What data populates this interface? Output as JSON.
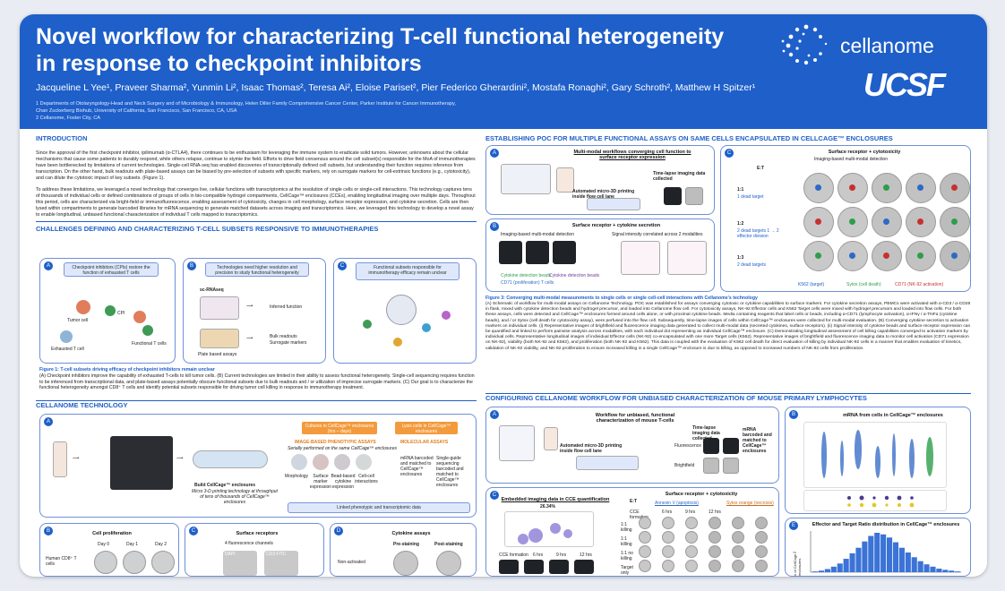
{
  "header": {
    "title_line1": "Novel workflow for characterizing T-cell functional heterogeneity",
    "title_line2": "in response to checkpoint inhibitors",
    "authors": "Jacqueline L Yee¹, Praveer Sharma², Yunmin Li², Isaac Thomas², Teresa Ai², Eloise Pariset², Pier Federico Gherardini², Mostafa Ronaghi², Gary Schroth², Matthew H Spitzer¹",
    "affil1": "1 Departments of Otolaryngology-Head and Neck Surgery and of Microbiology & Immunology, Helen Diller Family Comprehensive Cancer Center, Parker Institute for Cancer Immunotherapy,",
    "affil2": "Chan Zuckerberg Biohub, University of California, San Francisco, San Francisco, CA, USA",
    "affil3": "2 Cellanome, Foster City, CA",
    "logo_word": "cellanome",
    "logo_ucsf": "UCSF"
  },
  "intro": {
    "title": "INTRODUCTION",
    "p1": "Since the approval of the first checkpoint inhibitor, ipilimumab (α-CTLA4), there continues to be enthusiasm for leveraging the immune system to eradicate solid tumors. However, unknowns about the cellular mechanisms that cause some patients to durably respond, while others relapse, continue to stymie the field. Efforts to drive field consensus around the cell subset(s) responsible for the MoA of immunotherapies have been bottlenecked by limitations of current technologies. Single-cell RNA-seq has enabled discoveries of transcriptionally defined cell subsets, but understanding their function requires inference from transcription. On the other hand, bulk readouts with plate-based assays can be biased by pre-selection of subsets with specific markers, rely on surrogate markers for cell-extrinsic functions (e.g., cytotoxicity), and can dilute the cytotoxic impact of key subsets. (Figure 1).",
    "p2": "To address these limitations, we leveraged a novel technology that converges live, cellular functions with transcriptomics at the resolution of single cells or single-cell interactions. This technology captures tens of thousands of individual cells or defined combinations of groups of cells in bio-compatible hydrogel compartments, CellCage™ enclosures (CCEs), enabling longitudinal imaging over multiple days. Throughout this period, cells are characterized via bright-field or immunofluorescence, enabling assessment of cytotoxicity, changes in cell morphology, surface receptor expression, and cytokine secretion. Cells are then lysed within compartments to generate barcoded libraries for mRNA sequencing to generate matched datasets across imaging and transcriptomics. Here, we leveraged this technology to develop a novel assay to enable longitudinal, unbiased functional characterization of individual T cells mapped to transcriptomics."
  },
  "challenges": {
    "title": "CHALLENGES DEFINING AND CHARACTERIZING T-CELL SUBSETS RESPONSIVE TO IMMUNOTHERAPIES",
    "a_box": "Checkpoint inhibitors (CPIs) restore the function of exhausted T cells",
    "b_box": "Technologies need higher resolution and precision to study functional heterogeneity",
    "c_box": "Functional subsets responsible for immunotherapy efficacy remain unclear",
    "tumor": "Tumor cell",
    "cpi": "CPI",
    "exhausted": "Exhausted T cell",
    "functional": "Functional T cells",
    "scrna": "sc-RNAseq",
    "inferred": "Inferred function",
    "plate": "Plate based assays",
    "bulk1": "Bulk readouts",
    "bulk2": "Surrogate markers",
    "fig_title": "Figure 1: T-cell subsets driving efficacy of checkpoint inhibitors remain unclear",
    "fig_caption": "(A) Checkpoint inhibitors improve the capability of exhausted T-cells to kill tumor cells. (B) Current technologies are limited in their ability to assess functional heterogeneity. Single-cell sequencing requires function to be inferenced from transcriptional data, and plate-based assays potentially obscure functional subsets due to bulk readouts and / or utilization of imprecise surrogate markers. (C) Our goal is to characterize the functional heterogeneity amongst CD8⁺ T cells and identify potential subsets responsible for driving tumor cell killing in response to immunotherapy treatment."
  },
  "tech": {
    "title": "CELLANOME TECHNOLOGY",
    "build_title": "Build CellCage™ enclosures",
    "build_sub": "Micro 3-D printing technology at throughput of tens of thousands of CellCage™ enclosures",
    "culture": "Cultures in CellCage™ enclosures (hrs – days)",
    "lysis": "Lysis cells in CellCage™ enclosures",
    "image_assays": "IMAGE-BASED PHENOTYPIC ASSAYS",
    "image_sub": "Serially performed on the same CellCage™ enclosures",
    "molecular": "MOLECULAR ASSAYS",
    "m1": "Morphology",
    "m2": "Surface marker expression",
    "m3": "Bead-based cytokine expression",
    "m4": "Cell-cell interactions",
    "m5": "mRNA barcoded and matched to CellCage™ enclosures",
    "m6": "Single-guide sequencing barcoded and matched to CellCage™ enclosures",
    "linked": "Linked phenotypic and transcriptomic data",
    "prolif": "Cell proliferation",
    "d0": "Day 0",
    "d1": "Day 1",
    "d2": "Day 2",
    "human": "Human CD8⁺ T cells",
    "surface": "Surface receptors",
    "fluor": "4 fluorescence channels",
    "dapi": "DAPI",
    "cd3": "CD3 FITC",
    "cytokine": "Cytokine assays",
    "pre": "Pre-staining",
    "post": "Post-staining",
    "nonact": "Non-activated"
  },
  "poc": {
    "title": "ESTABLISHING POC FOR MULTIPLE FUNCTIONAL ASSAYS ON SAME CELLS ENCAPSULATED IN CELLCAGE™ ENCLOSURES",
    "a_title": "Multi-modal workflows converging cell function to surface receptor expression",
    "a_flow": "Automated micro-3D printing inside flow cell lane",
    "a_timelapse": "Time-lapse imaging data collected",
    "b_title": "Surface receptor + cytokine secretion",
    "b_i": "Imaging-based multi-modal detection",
    "b_ii": "Signal intensity correlated across 2 modalities",
    "b_leg1": "Cytokine detection beads",
    "b_leg2": "Cytokine detection beads",
    "b_leg3": "CD71 (proliferation) T cells",
    "c_title": "Surface receptor + cytotoxicity",
    "c_sub": "Imaging-based multi-modal detection",
    "c_et": "E:T",
    "c_r1": "1:1",
    "c_r1s": "1 dead target",
    "c_r2": "1:2",
    "c_r2s": "2 dead targets 1 → 2 effector division",
    "c_r3": "1:3",
    "c_r3s": "2 dead targets",
    "leg1": "K562 (target)",
    "leg2": "Sytox (cell death)",
    "leg3": "CD71 (NK-92 activation)",
    "fig_title": "Figure 3: Converging multi-modal measurements to single cells or single cell-cell interactions with Cellanome's technology",
    "fig_caption": "(A) Schematic of workflow for multi-modal assays on Cellanome Technology. POC was established for assays converging cytotoxic or cytokine capabilities to surface markers. For cytokine secretion assays, PBMCs were activated with α-CD3 / α-CD28 in flask, mixed with cytokine detection beads and hydrogel precursor, and loaded into Cellanome flow cell. For cytotoxicity assays, NK-92 Effector cells and K562 Target cells were mixed with hydrogel precursors and loaded into flow cells. For both these assays, cells were detected and CellCage™ enclosures formed around cells alone, or with proximal cytokine beads. Media containing reagents that label cells or beads, including α-CD71 (lymphocyte activation), α-IFNγ / α-TNFα (cytokine beads), and / or Sytox (cell death for cytotoxicity assay), were perfused into the flow cell. Subsequently, time-lapse images of cells within CellCage™ enclosures were collected for multi-modal evaluation. (B) Converging cytokine secretion to activation markers on individual cells. (i) Representative images of brightfield and fluorescence imaging data generated to collect multi-modal data (secreted cytokines, surface receptors). (ii) Signal intensity of cytokine beads and surface receptor expression can be quantified and linked to perform pairwise analysis across modalities, with each individual dot representing an individual CellCage™ enclosure. (C) Demonstrating longitudinal assessment of cell killing capabilities converged to activation markers by individual cells. Representative longitudinal images of individual Effector cells (NK-92) co-encapsulated with one more Target cells (K562). Representative images of brightfield and fluorescence imaging data to monitor cell activation (CD71 expression on NK-92), viability (both NK-92 and K562), and proliferation (both NK-92 and K562). This data is coupled with the evaluation of K562 cell death for direct evaluation of killing by individual NK-92 cells in a manner that enables evaluation of kinetics, validation of NK-92 viability, and NK-92 proliferation to ensure increased killing in a single CellCage™ enclosure is due to killing, as opposed to increased numbers of NK-92 cells from proliferation."
  },
  "config": {
    "title": "CONFIGURING CELLANOME WORKFLOW FOR UNBIASED CHARACTERIZATION OF MOUSE PRIMARY LYMPHOCYTES",
    "a_title": "Workflow for unbiased, functional characterization of mouse T-cells",
    "a_flow": "Automated micro-3D printing inside flow cell lane",
    "a_time": "Time-lapse imaging data collected",
    "a_mrna": "mRNA barcoded and matched to CellCage™ enclosures",
    "a_fluor": "Fluorescence",
    "a_bf": "Brightfield",
    "b_title": "mRNA from cells in CellCage™ enclosures",
    "c_left": "Embedded imaging data in CCE quantification",
    "c_pct": "26.34%",
    "c_title": "Surface receptor + cytotoxicity",
    "c_annex": "Annexin V (apoptosis)",
    "c_sytox": "Sytox orange (necrosis)",
    "c_formation": "CCE formation",
    "c_6": "6 hrs",
    "c_9": "9 hrs",
    "c_12": "12 hrs",
    "c_r1": "1:1 killing",
    "c_r2": "1:1 killing",
    "c_r3": "1:1 no killing",
    "c_r4": "Target only",
    "d_title": "Effector and Target Ratio distribution in CellCage™ enclosures",
    "d_ylabel": "# of CellCage™ enclosures"
  },
  "chart_data": {
    "type": "bar",
    "title": "Effector and Target Ratio distribution in CellCage™ enclosures",
    "ylabel": "# of CellCage™ enclosures",
    "xlabel": "",
    "values": [
      2,
      4,
      8,
      14,
      22,
      34,
      48,
      62,
      78,
      92,
      100,
      96,
      88,
      76,
      62,
      50,
      38,
      28,
      20,
      14,
      9,
      6,
      4,
      2
    ],
    "ylim": [
      0,
      100
    ]
  }
}
